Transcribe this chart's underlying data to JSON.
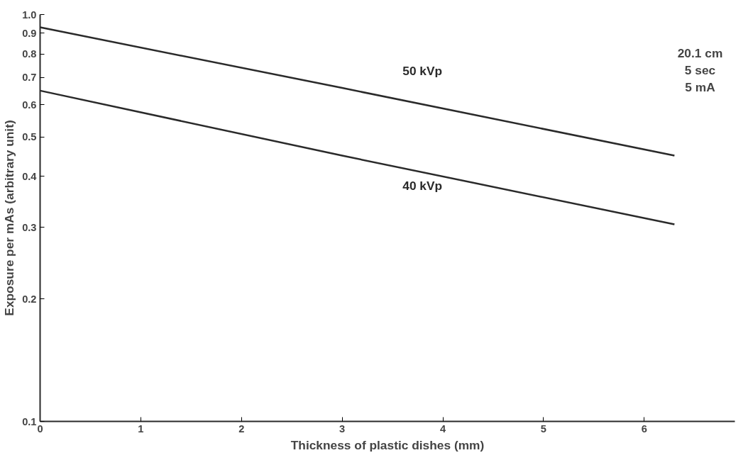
{
  "chart_data": {
    "type": "line",
    "xlabel": "Thickness of plastic dishes (mm)",
    "ylabel": "Exposure per mAs (arbitrary unit)",
    "x": [
      0,
      3,
      6.3
    ],
    "series": [
      {
        "name": "50 kVp",
        "color": "#2a2a2a",
        "values": [
          0.93,
          0.66,
          0.45
        ]
      },
      {
        "name": "40 kVp",
        "color": "#2a2a2a",
        "values": [
          0.65,
          0.45,
          0.305
        ]
      }
    ],
    "log": "y",
    "xlim": [
      0,
      6.9
    ],
    "ylim": [
      0.1,
      1.0
    ],
    "xticks": [
      0,
      1,
      2,
      3,
      4,
      5,
      6
    ],
    "yticks": [
      0.1,
      0.2,
      0.3,
      0.4,
      0.5,
      0.6,
      0.7,
      0.8,
      0.9,
      {
        "value": 1.0,
        "label": "1.0"
      }
    ],
    "annotations": [
      "20.1 cm\n5 sec\n5 mA"
    ],
    "grid": false,
    "marker": "none",
    "line_style": "solid"
  }
}
